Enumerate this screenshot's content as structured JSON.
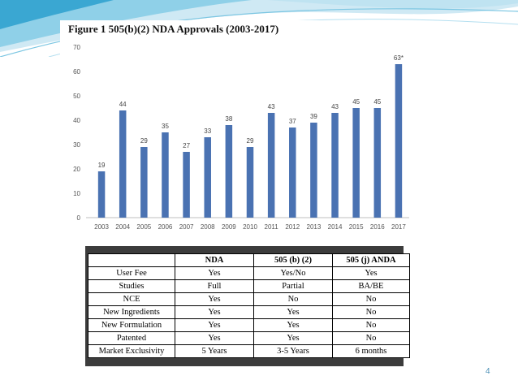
{
  "slide": {
    "page_number": "4"
  },
  "figure": {
    "title": "Figure 1    505(b)(2) NDA Approvals (2003-2017)"
  },
  "chart_data": {
    "type": "bar",
    "title": "Figure 1    505(b)(2) NDA Approvals (2003-2017)",
    "xlabel": "",
    "ylabel": "",
    "categories": [
      "2003",
      "2004",
      "2005",
      "2006",
      "2007",
      "2008",
      "2009",
      "2010",
      "2011",
      "2012",
      "2013",
      "2014",
      "2015",
      "2016",
      "2017"
    ],
    "values": [
      19,
      44,
      29,
      35,
      27,
      33,
      38,
      29,
      43,
      37,
      39,
      43,
      45,
      45,
      63
    ],
    "data_labels": [
      "19",
      "44",
      "29",
      "35",
      "27",
      "33",
      "38",
      "29",
      "43",
      "37",
      "39",
      "43",
      "45",
      "45",
      "63*"
    ],
    "ylim": [
      0,
      70
    ],
    "yticks": [
      0,
      10,
      20,
      30,
      40,
      50,
      60,
      70
    ],
    "grid": false,
    "legend": "none",
    "bar_color": "#4a72b2"
  },
  "table": {
    "headers": [
      "",
      "NDA",
      "505 (b) (2)",
      "505 (j) ANDA"
    ],
    "rows": [
      [
        "User Fee",
        "Yes",
        "Yes/No",
        "Yes"
      ],
      [
        "Studies",
        "Full",
        "Partial",
        "BA/BE"
      ],
      [
        "NCE",
        "Yes",
        "No",
        "No"
      ],
      [
        "New Ingredients",
        "Yes",
        "Yes",
        "No"
      ],
      [
        "New Formulation",
        "Yes",
        "Yes",
        "No"
      ],
      [
        "Patented",
        "Yes",
        "Yes",
        "No"
      ],
      [
        "Market Exclusivity",
        "5 Years",
        "3-5 Years",
        "6 months"
      ]
    ]
  }
}
